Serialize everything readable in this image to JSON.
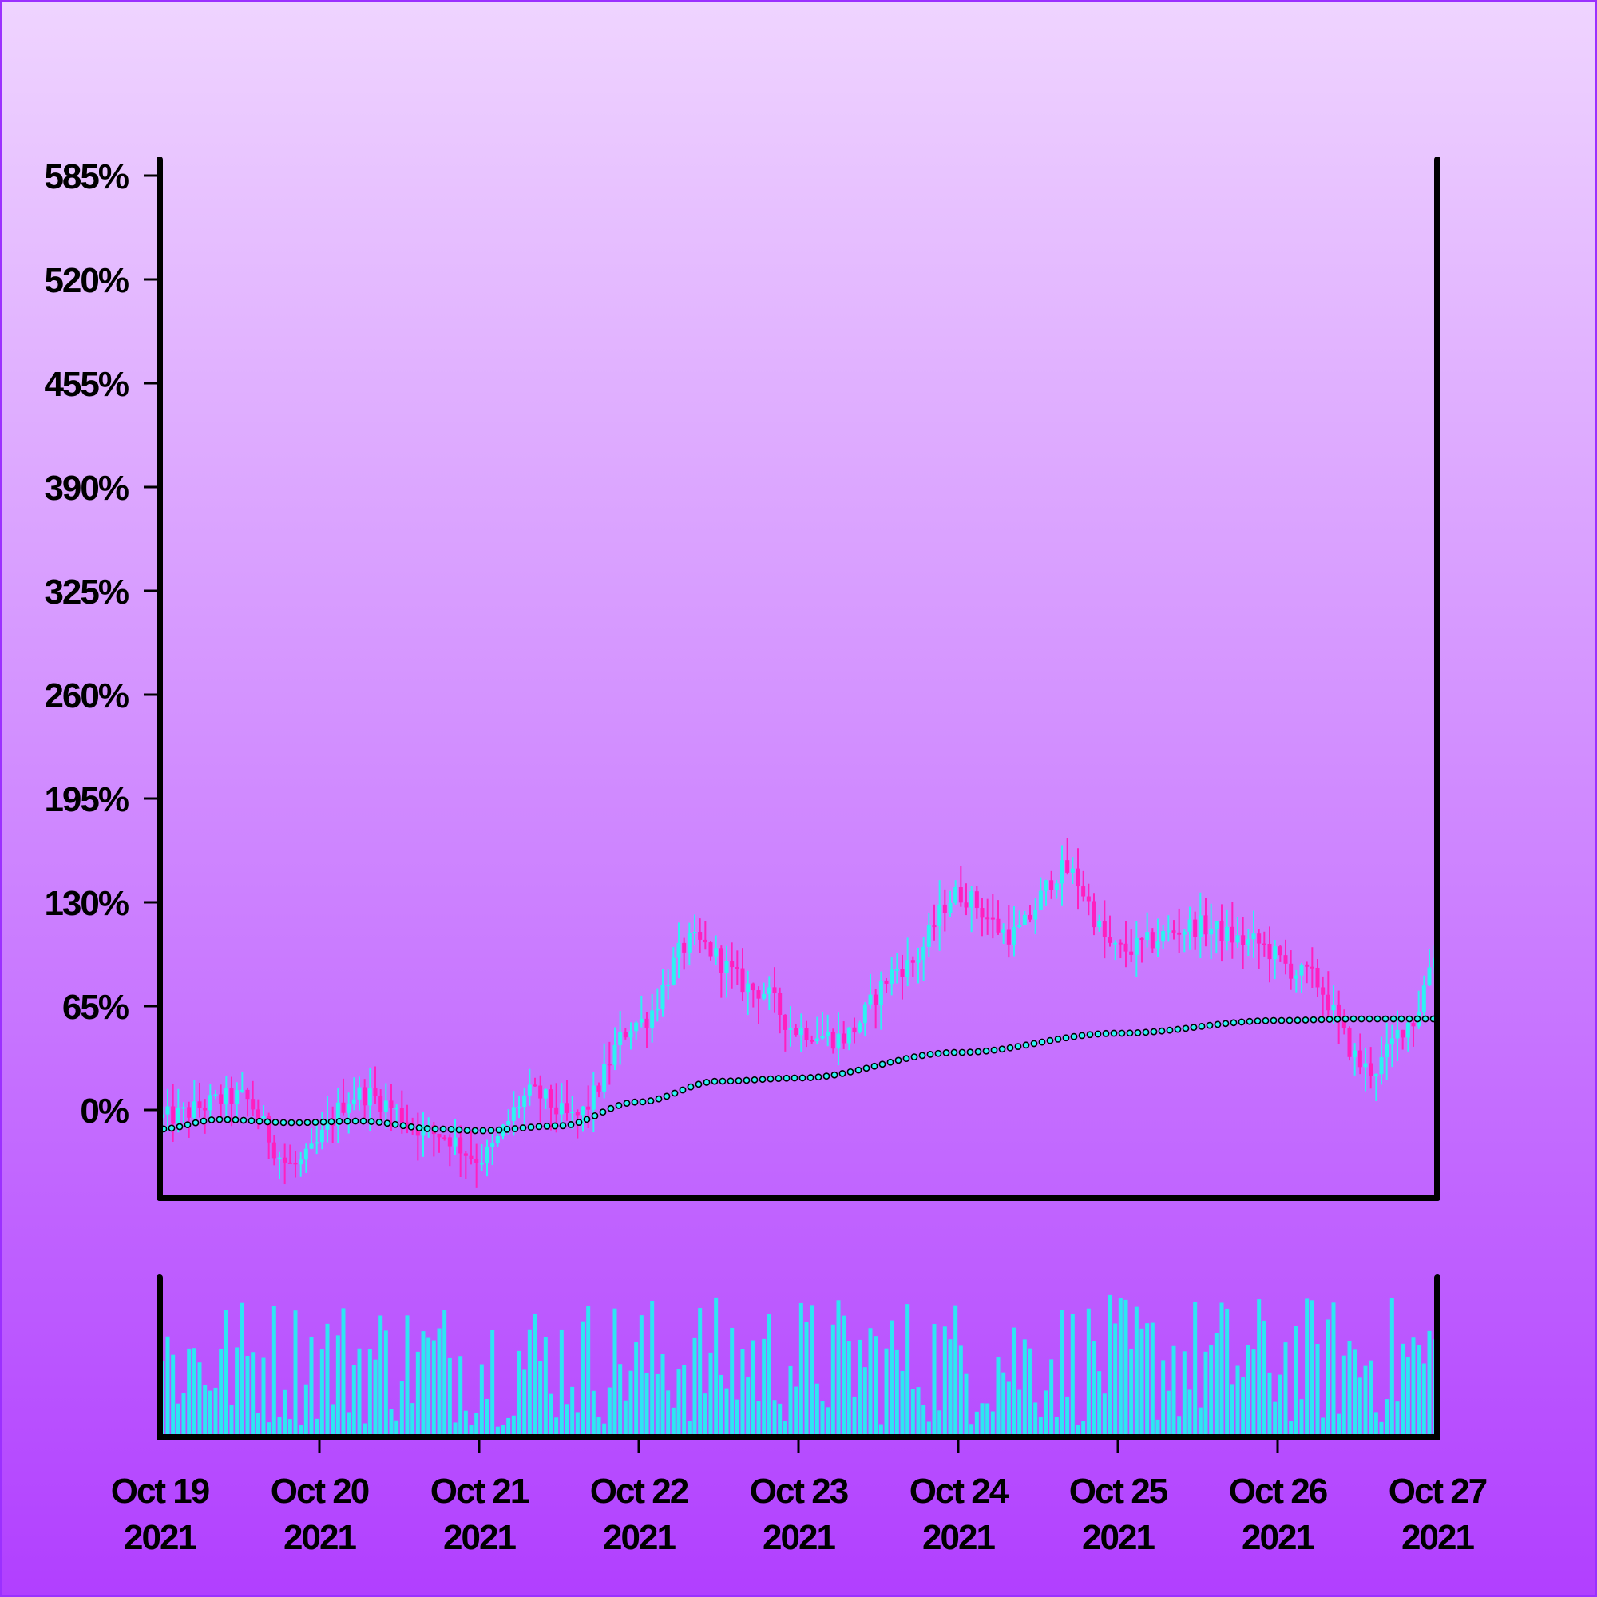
{
  "chart_data": {
    "type": "candlestick",
    "title": "",
    "xlabel": "",
    "ylabel": "",
    "y_unit": "%",
    "ylim": [
      -45,
      595
    ],
    "y_ticks": [
      0,
      65,
      130,
      195,
      260,
      325,
      390,
      455,
      520,
      585
    ],
    "y_tick_labels": [
      "0%",
      "65%",
      "130%",
      "195%",
      "260%",
      "325%",
      "390%",
      "455%",
      "520%",
      "585%"
    ],
    "x_range": [
      "2021-10-19",
      "2021-10-27"
    ],
    "x_ticks": [
      {
        "date": "2021-10-19",
        "line1": "Oct 19",
        "line2": "2021"
      },
      {
        "date": "2021-10-20",
        "line1": "Oct 20",
        "line2": "2021"
      },
      {
        "date": "2021-10-21",
        "line1": "Oct 21",
        "line2": "2021"
      },
      {
        "date": "2021-10-22",
        "line1": "Oct 22",
        "line2": "2021"
      },
      {
        "date": "2021-10-23",
        "line1": "Oct 23",
        "line2": "2021"
      },
      {
        "date": "2021-10-24",
        "line1": "Oct 24",
        "line2": "2021"
      },
      {
        "date": "2021-10-25",
        "line1": "Oct 25",
        "line2": "2021"
      },
      {
        "date": "2021-10-26",
        "line1": "Oct 26",
        "line2": "2021"
      },
      {
        "date": "2021-10-27",
        "line1": "Oct 27",
        "line2": "2021"
      }
    ],
    "grid": false,
    "colors": {
      "up": "#2ef2f2",
      "down": "#ff1fbf",
      "moving_average_marker": "#2ef2f2",
      "moving_average_outline": "#000000",
      "volume": "#2ee6f2",
      "axis": "#000000",
      "background_top": "#efd4ff",
      "background_bottom": "#b13fff",
      "border": "#9b30ff"
    },
    "price_anchors": [
      {
        "date": "2021-10-19 00:00",
        "value": -5
      },
      {
        "date": "2021-10-19 12:00",
        "value": 8
      },
      {
        "date": "2021-10-19 20:00",
        "value": -35
      },
      {
        "date": "2021-10-20 06:00",
        "value": 10
      },
      {
        "date": "2021-10-20 18:00",
        "value": -15
      },
      {
        "date": "2021-10-21 00:00",
        "value": -30
      },
      {
        "date": "2021-10-21 08:00",
        "value": 10
      },
      {
        "date": "2021-10-21 14:00",
        "value": -5
      },
      {
        "date": "2021-10-22 00:00",
        "value": 55
      },
      {
        "date": "2021-10-22 08:00",
        "value": 105
      },
      {
        "date": "2021-10-22 18:00",
        "value": 75
      },
      {
        "date": "2021-10-23 00:00",
        "value": 50
      },
      {
        "date": "2021-10-23 06:00",
        "value": 45
      },
      {
        "date": "2021-10-23 16:00",
        "value": 90
      },
      {
        "date": "2021-10-24 00:00",
        "value": 135
      },
      {
        "date": "2021-10-24 08:00",
        "value": 110
      },
      {
        "date": "2021-10-24 16:00",
        "value": 150
      },
      {
        "date": "2021-10-25 00:00",
        "value": 100
      },
      {
        "date": "2021-10-25 12:00",
        "value": 115
      },
      {
        "date": "2021-10-25 20:00",
        "value": 105
      },
      {
        "date": "2021-10-26 04:00",
        "value": 85
      },
      {
        "date": "2021-10-26 14:00",
        "value": 25
      },
      {
        "date": "2021-10-26 20:00",
        "value": 55
      },
      {
        "date": "2021-10-27 00:00",
        "value": 100
      }
    ],
    "moving_average": [
      {
        "date": "2021-10-19 00:00",
        "value": -12
      },
      {
        "date": "2021-10-19 09:00",
        "value": -6
      },
      {
        "date": "2021-10-19 20:00",
        "value": -8
      },
      {
        "date": "2021-10-20 06:00",
        "value": -7
      },
      {
        "date": "2021-10-20 18:00",
        "value": -12
      },
      {
        "date": "2021-10-21 00:00",
        "value": -13
      },
      {
        "date": "2021-10-21 12:00",
        "value": -10
      },
      {
        "date": "2021-10-22 00:00",
        "value": 5
      },
      {
        "date": "2021-10-22 12:00",
        "value": 18
      },
      {
        "date": "2021-10-23 00:00",
        "value": 20
      },
      {
        "date": "2021-10-24 00:00",
        "value": 36
      },
      {
        "date": "2021-10-25 00:00",
        "value": 48
      },
      {
        "date": "2021-10-26 00:00",
        "value": 56
      },
      {
        "date": "2021-10-26 12:00",
        "value": 57
      },
      {
        "date": "2021-10-27 00:00",
        "value": 57
      }
    ],
    "volume_panel": {
      "ylim": [
        0,
        100
      ],
      "bar_count": 240,
      "typical_range": [
        5,
        95
      ]
    }
  }
}
